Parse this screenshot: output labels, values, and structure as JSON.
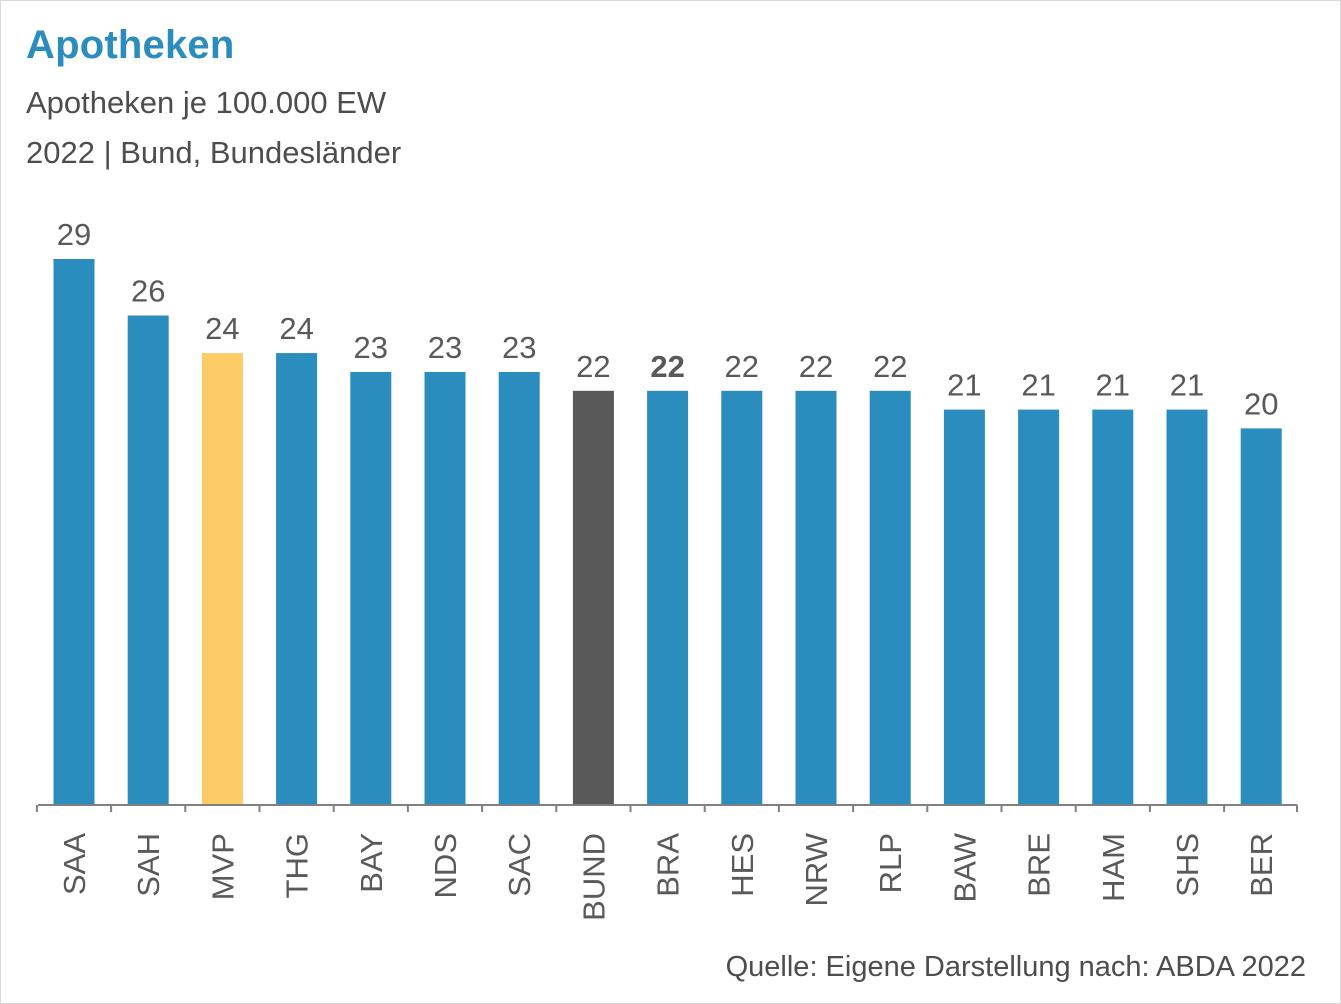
{
  "title": "Apotheken",
  "subtitle": "Apotheken je 100.000 EW",
  "subtitle2": "2022 | Bund, Bundesländer",
  "source": "Quelle: Eigene Darstellung nach: ABDA 2022",
  "colors": {
    "default": "#2b8cbe",
    "highlight": "#fdcc66",
    "national": "#595959",
    "label": "#595959"
  },
  "chart_data": {
    "type": "bar",
    "title": "Apotheken",
    "categories": [
      "SAA",
      "SAH",
      "MVP",
      "THG",
      "BAY",
      "NDS",
      "SAC",
      "BUND",
      "BRA",
      "HES",
      "NRW",
      "RLP",
      "BAW",
      "BRE",
      "HAM",
      "SHS",
      "BER"
    ],
    "values": [
      29,
      26,
      24,
      24,
      23,
      23,
      23,
      22,
      22,
      22,
      22,
      22,
      21,
      21,
      21,
      21,
      20
    ],
    "bar_colors": [
      "default",
      "default",
      "highlight",
      "default",
      "default",
      "default",
      "default",
      "national",
      "default",
      "default",
      "default",
      "default",
      "default",
      "default",
      "default",
      "default",
      "default"
    ],
    "bold_labels": [
      "BRA"
    ],
    "ylim": [
      0,
      29
    ],
    "grid": false,
    "legend": "none"
  }
}
